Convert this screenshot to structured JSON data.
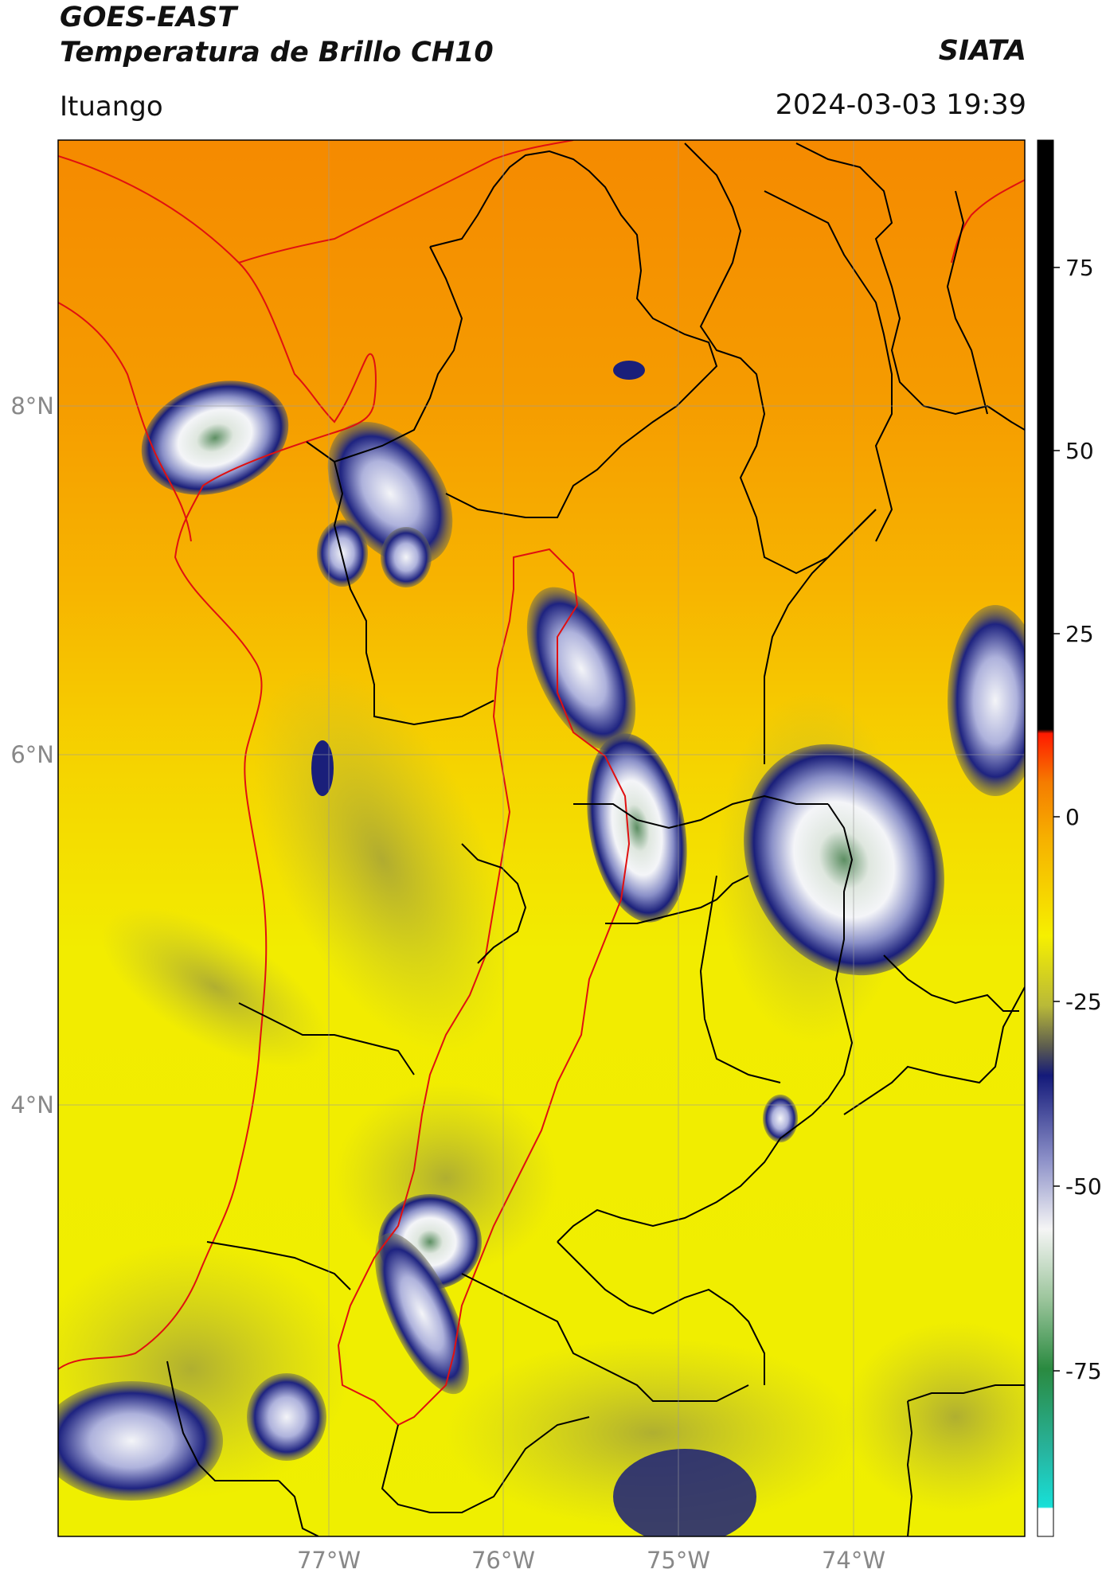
{
  "header": {
    "satellite": "GOES-EAST",
    "product": "Temperatura de Brillo CH10",
    "brand": "SIATA",
    "location": "Ituango",
    "datetime": "2024-03-03 19:39"
  },
  "map": {
    "lat_ticks": [
      "8°N",
      "6°N",
      "4°N"
    ],
    "lon_ticks": [
      "77°W",
      "76°W",
      "75°W",
      "74°W"
    ],
    "background_colors": {
      "orange": "#f58a00",
      "yellow": "#f2f000",
      "olive": "#b8b83a"
    },
    "cloud_colors": {
      "navy": "#1a1f7a",
      "mid": "#6a70b8",
      "white": "#f0f2f5",
      "green": "#4a8a50"
    },
    "border_color": "#000000",
    "highlight_border_color": "#e01010"
  },
  "colorbar": {
    "ticks": [
      "75",
      "50",
      "25",
      "0",
      "-25",
      "-50",
      "-75"
    ]
  }
}
